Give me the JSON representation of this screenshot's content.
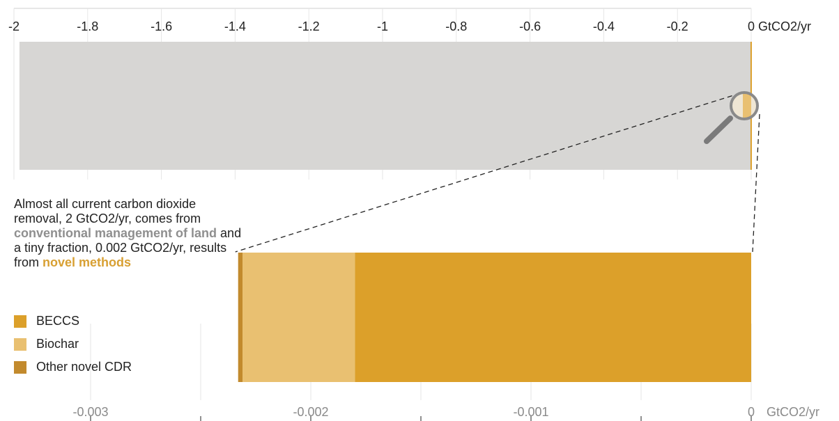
{
  "annotation": {
    "part1": "Almost all current carbon dioxide removal, 2 GtCO2/yr, comes from ",
    "highlight1": "conventional management of land",
    "part2": " and a tiny fraction, 0.002 GtCO2/yr, results from ",
    "highlight2": "novel methods"
  },
  "colors": {
    "conventional": "#d7d6d4",
    "beccs": "#dca02a",
    "biochar": "#e9c071",
    "other": "#c28a2d",
    "text": "#222222",
    "muted": "#8a8a8a"
  },
  "chart_data": [
    {
      "type": "bar",
      "orientation": "horizontal",
      "x_ticks": [
        "-2",
        "-1.8",
        "-1.6",
        "-1.4",
        "-1.2",
        "-1",
        "-0.8",
        "-0.6",
        "-0.4",
        "-0.2",
        "0"
      ],
      "unit_label": "GtCO2/yr",
      "xlim": [
        -2,
        0
      ],
      "series": [
        {
          "name": "conventional management of land",
          "value": -1.985
        },
        {
          "name": "novel methods",
          "value": -0.002
        }
      ]
    },
    {
      "type": "bar",
      "orientation": "horizontal",
      "stacked": true,
      "x_ticks": [
        "-0.003",
        "-0.002",
        "-0.001",
        "0"
      ],
      "unit_label": "GtCO2/yr",
      "xlim": [
        -0.0035,
        0
      ],
      "series": [
        {
          "name": "BECCS",
          "value": -0.0018
        },
        {
          "name": "Biochar",
          "value": -0.00051
        },
        {
          "name": "Other novel CDR",
          "value": -2e-05
        }
      ]
    }
  ],
  "legend": [
    {
      "label": "BECCS",
      "color": "#dca02a"
    },
    {
      "label": "Biochar",
      "color": "#e9c071"
    },
    {
      "label": "Other novel CDR",
      "color": "#c28a2d"
    }
  ]
}
